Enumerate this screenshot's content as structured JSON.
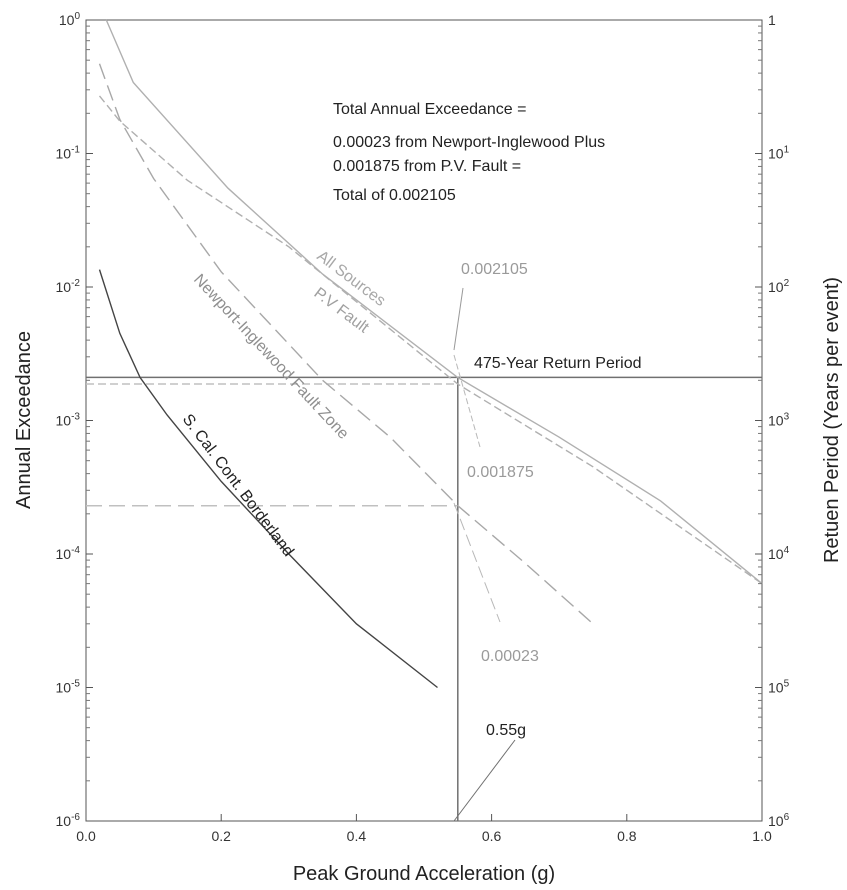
{
  "chart_data": {
    "type": "line",
    "title": "",
    "xlabel": "Peak Ground Acceleration (g)",
    "ylabel": "Annual Exceedance",
    "y2label": "Retuen Period (Years per event)",
    "xlim": [
      0,
      1.0
    ],
    "ylim": [
      1e-06,
      1
    ],
    "yscale": "log",
    "grid": false,
    "x_ticks": [
      "0.0",
      "0.2",
      "0.4",
      "0.6",
      "0.8",
      "1.0"
    ],
    "y_ticks": [
      {
        "base": "10",
        "exp": "0"
      },
      {
        "base": "10",
        "exp": "-1"
      },
      {
        "base": "10",
        "exp": "-2"
      },
      {
        "base": "10",
        "exp": "-3"
      },
      {
        "base": "10",
        "exp": "-4"
      },
      {
        "base": "10",
        "exp": "-5"
      },
      {
        "base": "10",
        "exp": "-6"
      }
    ],
    "y2_ticks": [
      {
        "base": "1",
        "exp": ""
      },
      {
        "base": "10",
        "exp": "1"
      },
      {
        "base": "10",
        "exp": "2"
      },
      {
        "base": "10",
        "exp": "3"
      },
      {
        "base": "10",
        "exp": "4"
      },
      {
        "base": "10",
        "exp": "5"
      },
      {
        "base": "10",
        "exp": "6"
      }
    ],
    "series": [
      {
        "name": "All Sources",
        "color": "#b0b0b0",
        "style": "solid",
        "x": [
          0.03,
          0.07,
          0.21,
          0.35,
          0.55,
          0.7,
          0.85,
          1.0
        ],
        "y": [
          1.0,
          0.34,
          0.055,
          0.0125,
          0.0021,
          0.00075,
          0.00025,
          6e-05
        ]
      },
      {
        "name": "P.V Fault",
        "color": "#b0b0b0",
        "style": "dash",
        "x": [
          0.02,
          0.05,
          0.15,
          0.3,
          0.55,
          0.75,
          1.0
        ],
        "y": [
          0.27,
          0.175,
          0.063,
          0.02,
          0.001875,
          0.00045,
          6e-05
        ]
      },
      {
        "name": "Newport-Inglewood Fault Zone",
        "color": "#a8a8a8",
        "style": "longdash",
        "x": [
          0.02,
          0.05,
          0.1,
          0.2,
          0.35,
          0.45,
          0.55,
          0.65,
          0.75
        ],
        "y": [
          0.47,
          0.18,
          0.065,
          0.013,
          0.002,
          0.00075,
          0.00023,
          8.5e-05,
          3e-05
        ]
      },
      {
        "name": "S. Cal. Cont. Borderland",
        "color": "#444444",
        "style": "solid",
        "x": [
          0.02,
          0.05,
          0.08,
          0.12,
          0.2,
          0.3,
          0.4,
          0.52
        ],
        "y": [
          0.0135,
          0.0045,
          0.0021,
          0.0011,
          0.00035,
          0.0001,
          3e-05,
          1e-05
        ]
      }
    ],
    "reference_lines": [
      {
        "kind": "h",
        "y": 0.002105,
        "x_from": 0.0,
        "x_to": 1.0,
        "color": "#707070",
        "style": "solid"
      },
      {
        "kind": "h",
        "y": 0.001875,
        "x_from": 0.0,
        "x_to": 0.55,
        "color": "#c0c0c0",
        "style": "dash"
      },
      {
        "kind": "h",
        "y": 0.00023,
        "x_from": 0.0,
        "x_to": 0.55,
        "color": "#c0c0c0",
        "style": "longdash"
      },
      {
        "kind": "v",
        "x": 0.55,
        "y_from": 1e-06,
        "y_to": 0.002105,
        "color": "#707070",
        "style": "solid"
      }
    ],
    "annotations": {
      "total_block": [
        "Total Annual Exceedance =",
        "0.00023 from Newport-Inglewood Plus",
        "0.001875 from P.V. Fault =",
        "Total of 0.002105"
      ],
      "return_period": "475-Year Return Period",
      "v_total": "0.002105",
      "v_pv": "0.001875",
      "v_ni": "0.00023",
      "pga": "0.55g"
    }
  }
}
